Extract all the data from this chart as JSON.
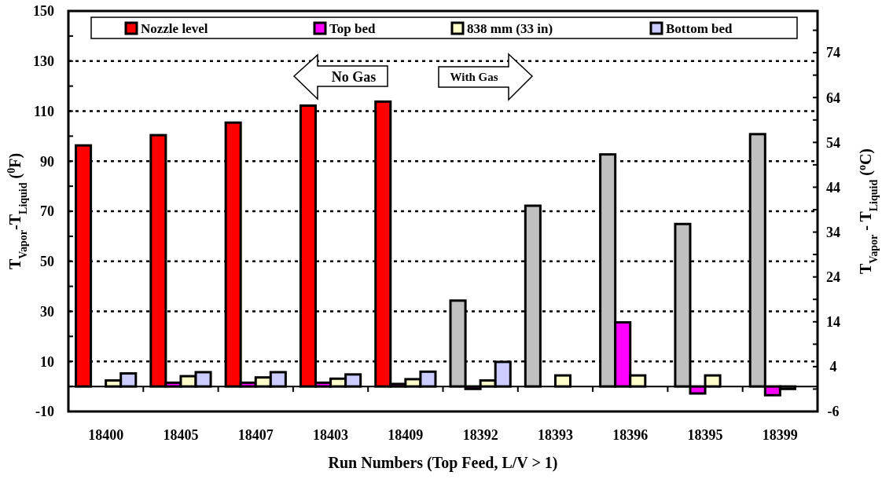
{
  "chart_data": {
    "type": "bar",
    "xlabel": "Run Numbers (Top Feed, L/V > 1)",
    "ylabel": "T$_{Vapor}$-T$_{Liquid}$ ($^{0}$F)",
    "y2label": "T$_{Vapor}$ - T$_{Liquid}$ ($^{o}$C)",
    "categories": [
      "18400",
      "18405",
      "18407",
      "18403",
      "18409",
      "18392",
      "18393",
      "18396",
      "18395",
      "18399"
    ],
    "series": [
      {
        "name": "Nozzle level",
        "color": "#ff0000",
        "colors": [
          "#ff0000",
          "#ff0000",
          "#ff0000",
          "#ff0000",
          "#ff0000",
          "#c0c0c0",
          "#c0c0c0",
          "#c0c0c0",
          "#c0c0c0",
          "#c0c0c0"
        ],
        "values": [
          96.3,
          100.4,
          105.4,
          112.2,
          113.8,
          34.3,
          72.2,
          92.7,
          64.9,
          100.8
        ]
      },
      {
        "name": "Top bed",
        "color": "#ff00ff",
        "values": [
          null,
          1.5,
          1.5,
          1.5,
          1,
          -1,
          null,
          25.6,
          -2.8,
          -3.5
        ]
      },
      {
        "name": "838 mm (33 in)",
        "color": "#ffffcc",
        "values": [
          2.4,
          4.1,
          3.6,
          3.1,
          2.9,
          2.4,
          4.4,
          4.4,
          4.4,
          -1
        ]
      },
      {
        "name": "Bottom bed",
        "color": "#ccccff",
        "values": [
          5.2,
          5.7,
          5.7,
          4.8,
          5.9,
          9.8,
          null,
          null,
          null,
          null
        ]
      }
    ],
    "ylim": [
      -10,
      150
    ],
    "yticks": [
      -10,
      {
        "value": 0,
        "label": null
      },
      10,
      {
        "value": 20,
        "label": null
      },
      30,
      {
        "value": 40,
        "label": null
      },
      50,
      {
        "value": 60,
        "label": null
      },
      70,
      {
        "value": 80,
        "label": null
      },
      90,
      {
        "value": 100,
        "label": null
      },
      110,
      {
        "value": 120,
        "label": null
      },
      130,
      {
        "value": 140,
        "label": null
      },
      150
    ],
    "y2lim": [
      -6,
      83.3
    ],
    "y2ticks": [
      -6,
      {
        "value": -1,
        "label": null
      },
      4,
      {
        "value": 9,
        "label": null
      },
      14,
      {
        "value": 19,
        "label": null
      },
      24,
      {
        "value": 29,
        "label": null
      },
      34,
      {
        "value": 39,
        "label": null
      },
      44,
      {
        "value": 49,
        "label": null
      },
      54,
      {
        "value": 59,
        "label": null
      },
      64,
      {
        "value": 69,
        "label": null
      },
      74,
      {
        "value": 79,
        "label": null
      }
    ],
    "grid": "y",
    "legend": "top",
    "annotations": [
      "No Gas",
      "With Gas"
    ]
  }
}
